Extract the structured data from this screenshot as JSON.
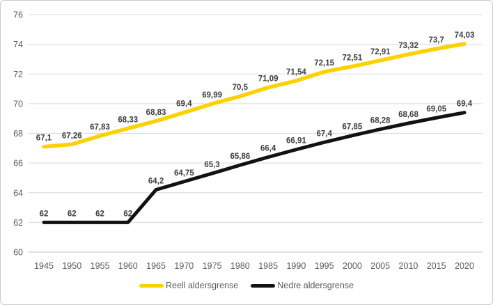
{
  "chart_data": {
    "type": "line",
    "title": "",
    "xlabel": "",
    "ylabel": "",
    "x": [
      "1945",
      "1950",
      "1955",
      "1960",
      "1965",
      "1970",
      "1975",
      "1980",
      "1985",
      "1990",
      "1995",
      "2000",
      "2005",
      "2010",
      "2015",
      "2020"
    ],
    "series": [
      {
        "name": "Reell aldersgrense",
        "color": "#FFD100",
        "values": [
          67.1,
          67.26,
          67.83,
          68.33,
          68.83,
          69.4,
          69.99,
          70.5,
          71.09,
          71.54,
          72.15,
          72.51,
          72.91,
          73.32,
          73.7,
          74.03
        ],
        "labels": [
          "67,1",
          "67,26",
          "67,83",
          "68,33",
          "68,83",
          "69,4",
          "69,99",
          "70,5",
          "71,09",
          "71,54",
          "72,15",
          "72,51",
          "72,91",
          "73,32",
          "73,7",
          "74,03"
        ]
      },
      {
        "name": "Nedre aldersgrense",
        "color": "#121212",
        "values": [
          62,
          62,
          62,
          62,
          64.2,
          64.75,
          65.3,
          65.86,
          66.4,
          66.91,
          67.4,
          67.85,
          68.28,
          68.68,
          69.05,
          69.4
        ],
        "labels": [
          "62",
          "62",
          "62",
          "62",
          "64,2",
          "64,75",
          "65,3",
          "65,86",
          "66,4",
          "66,91",
          "67,4",
          "67,85",
          "68,28",
          "68,68",
          "69,05",
          "69,4"
        ]
      }
    ],
    "ylim": [
      60,
      76
    ],
    "ytick_step": 2,
    "yticks": [
      "60",
      "62",
      "64",
      "66",
      "68",
      "70",
      "72",
      "74",
      "76"
    ],
    "grid": "horizontal",
    "legend_position": "bottom"
  },
  "colors": {
    "grid": "#D9D9D9",
    "axis_line": "#BFBFBF",
    "axis_text": "#595959",
    "data_label_text": "#3F3F3F",
    "background": "#FFFFFF",
    "border": "#CBCBCB"
  }
}
